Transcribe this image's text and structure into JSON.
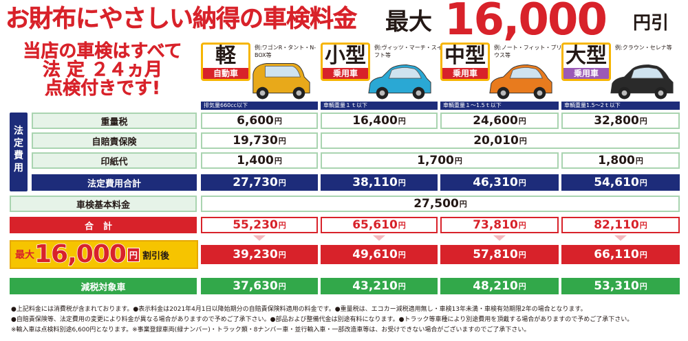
{
  "header": {
    "title": "お財布にやさしい納得の車検料金",
    "max_label": "最大",
    "max_amount": "16,000",
    "max_unit": "円引"
  },
  "promo": {
    "lines": [
      "当店の車検はすべて",
      "法 定 ２４ヵ月",
      "点検付きです!"
    ]
  },
  "cars": [
    {
      "size": "軽",
      "type": "自動車",
      "examples": "例:ワゴンR・タント・N-BOX等",
      "footnote": "排気量660cc以下",
      "badge_color": "#d8222a",
      "car_color": "#e8a91a"
    },
    {
      "size": "小型",
      "type": "乗用車",
      "examples": "例:ヴィッツ・マーチ・スイフト等",
      "footnote": "車輌重量１ｔ以下",
      "badge_color": "#d8222a",
      "car_color": "#2aa8d4"
    },
    {
      "size": "中型",
      "type": "乗用車",
      "examples": "例:ノート・フィット・プリウス等",
      "footnote": "車輌重量１～1.5ｔ以下",
      "badge_color": "#d8222a",
      "car_color": "#e87b1e"
    },
    {
      "size": "大型",
      "type": "乗用車",
      "examples": "例:クラウン・セレナ等",
      "footnote": "車輌重量1.5～2ｔ以下",
      "badge_color": "#9b59b6",
      "car_color": "#2a2a2a"
    }
  ],
  "table": {
    "side_label": [
      "法",
      "定",
      "費",
      "用"
    ],
    "yen": "円",
    "rows": {
      "weight_tax": {
        "label": "重量税",
        "values": [
          "6,600",
          "16,400",
          "24,600",
          "32,800"
        ]
      },
      "insurance": {
        "label": "自賠責保険",
        "values": [
          "19,730",
          "20,010"
        ]
      },
      "stamp": {
        "label": "印紙代",
        "values": [
          "1,400",
          "1,700",
          "1,800"
        ]
      },
      "legal_total": {
        "label": "法定費用合計",
        "values": [
          "27,730",
          "38,110",
          "46,310",
          "54,610"
        ]
      },
      "basic_fee": {
        "label": "車検基本料金",
        "values": [
          "27,500"
        ]
      },
      "total": {
        "label": "合計",
        "values": [
          "55,230",
          "65,610",
          "73,810",
          "82,110"
        ]
      },
      "discounted": {
        "values": [
          "39,230",
          "49,610",
          "57,810",
          "66,110"
        ]
      },
      "tax_reduced": {
        "label": "減税対象車",
        "values": [
          "37,630",
          "43,210",
          "48,210",
          "53,310"
        ]
      }
    }
  },
  "discount_box": {
    "max": "最大",
    "amount": "16,000",
    "yen": "円",
    "tag": "割引後"
  },
  "notes": [
    "●上記料金には消費税が含まれております。●表示料金は2021年4月1日以降始期分の自賠責保険料適用の料金です。●重量税は、エコカー減税適用無し・車検13年未満・車検有効期限2年の場合となります。",
    "●自賠責保険等、法定費用の変更により料金が異なる場合がありますので予めご了承下さい。●部品および整備代金は別途有料になります。●トラック等車種により別途費用を頂戴する場合がありますので予めご了承下さい。",
    "※輸入車は点検料別途6,600円となります。※事業登録車両(緑ナンバー)・トラック類・8ナンバー車・並行輸入車・一部改造車等は、お受けできない場合がございますのでご了承下さい。"
  ]
}
